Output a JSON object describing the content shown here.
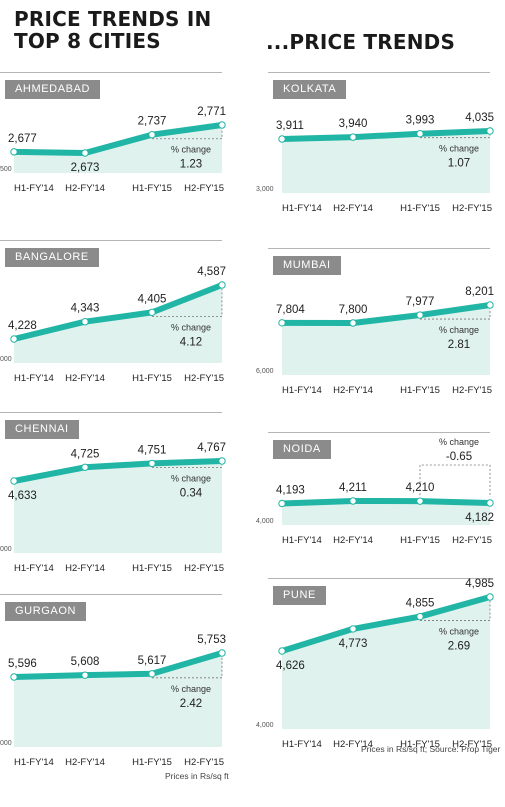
{
  "title_left": "PRICE TRENDS IN TOP 8 CITIES",
  "title_right": "...PRICE TRENDS",
  "note_left": "Prices in Rs/sq ft",
  "note_right": "Prices in Rs/sq ft; Source: Prop Tiger",
  "colors": {
    "line": "#21b5a5",
    "fill": "#dff2ee",
    "tag": "#8b8b8b"
  },
  "chart_data": [
    {
      "type": "area",
      "city": "AHMEDABAD",
      "categories": [
        "H1-FY'14",
        "H2-FY'14",
        "H1-FY'15",
        "H2-FY'15"
      ],
      "values": [
        2677,
        2673,
        2737,
        2771
      ],
      "value_labels": [
        "2,677",
        "2,673",
        "2,737",
        "2,771"
      ],
      "change_label": "% change",
      "change_value": "1.23",
      "ymin_label": "500"
    },
    {
      "type": "area",
      "city": "BANGALORE",
      "categories": [
        "H1-FY'14",
        "H2-FY'14",
        "H1-FY'15",
        "H2-FY'15"
      ],
      "values": [
        4228,
        4343,
        4405,
        4587
      ],
      "value_labels": [
        "4,228",
        "4,343",
        "4,405",
        "4,587"
      ],
      "change_label": "% change",
      "change_value": "4.12",
      "ymin_label": "000"
    },
    {
      "type": "area",
      "city": "CHENNAI",
      "categories": [
        "H1-FY'14",
        "H2-FY'14",
        "H1-FY'15",
        "H2-FY'15"
      ],
      "values": [
        4633,
        4725,
        4751,
        4767
      ],
      "value_labels": [
        "4,633",
        "4,725",
        "4,751",
        "4,767"
      ],
      "change_label": "% change",
      "change_value": "0.34",
      "ymin_label": "000"
    },
    {
      "type": "area",
      "city": "GURGAON",
      "categories": [
        "H1-FY'14",
        "H2-FY'14",
        "H1-FY'15",
        "H2-FY'15"
      ],
      "values": [
        5596,
        5608,
        5617,
        5753
      ],
      "value_labels": [
        "5,596",
        "5,608",
        "5,617",
        "5,753"
      ],
      "change_label": "% change",
      "change_value": "2.42",
      "ymin_label": "000"
    },
    {
      "type": "area",
      "city": "KOLKATA",
      "categories": [
        "H1-FY'14",
        "H2-FY'14",
        "H1-FY'15",
        "H2-FY'15"
      ],
      "values": [
        3911,
        3940,
        3993,
        4035
      ],
      "value_labels": [
        "3,911",
        "3,940",
        "3,993",
        "4,035"
      ],
      "change_label": "% change",
      "change_value": "1.07",
      "ymin_label": "3,000"
    },
    {
      "type": "area",
      "city": "MUMBAI",
      "categories": [
        "H1-FY'14",
        "H2-FY'14",
        "H1-FY'15",
        "H2-FY'15"
      ],
      "values": [
        7804,
        7800,
        7977,
        8201
      ],
      "value_labels": [
        "7,804",
        "7,800",
        "7,977",
        "8,201"
      ],
      "change_label": "% change",
      "change_value": "2.81",
      "ymin_label": "6,000"
    },
    {
      "type": "area",
      "city": "NOIDA",
      "categories": [
        "H1-FY'14",
        "H2-FY'14",
        "H1-FY'15",
        "H2-FY'15"
      ],
      "values": [
        4193,
        4211,
        4210,
        4182
      ],
      "value_labels": [
        "4,193",
        "4,211",
        "4,210",
        "4,182"
      ],
      "change_label": "% change",
      "change_value": "-0.65",
      "ymin_label": "4,000"
    },
    {
      "type": "area",
      "city": "PUNE",
      "categories": [
        "H1-FY'14",
        "H2-FY'14",
        "H1-FY'15",
        "H2-FY'15"
      ],
      "values": [
        4626,
        4773,
        4855,
        4985
      ],
      "value_labels": [
        "4,626",
        "4,773",
        "4,855",
        "4,985"
      ],
      "change_label": "% change",
      "change_value": "2.69",
      "ymin_label": "4,000"
    }
  ]
}
